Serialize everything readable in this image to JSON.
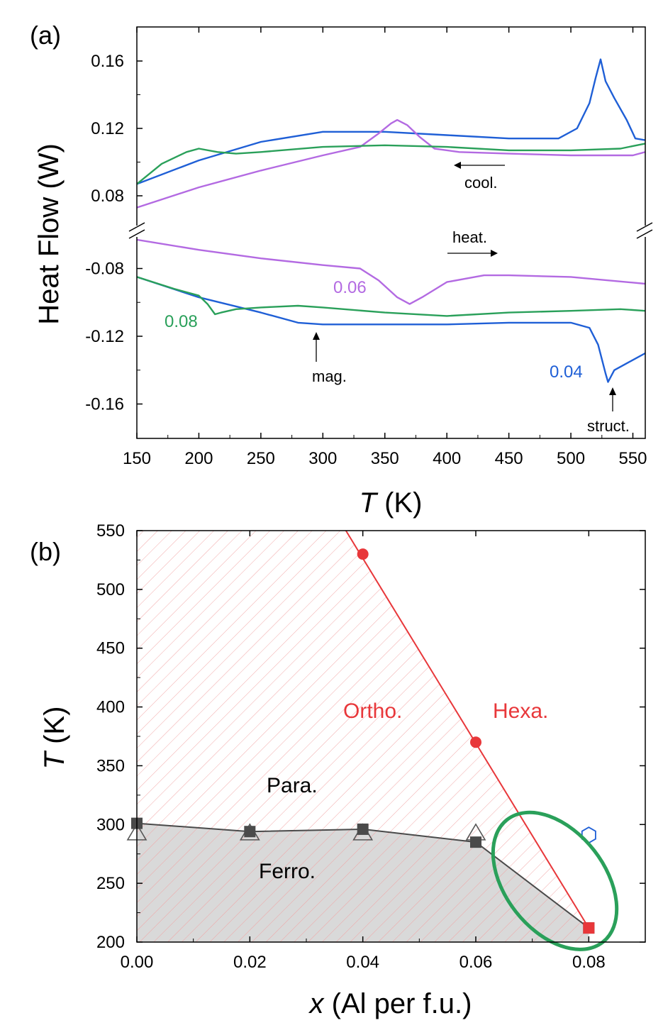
{
  "panel_a": {
    "label": "(a)",
    "ylabel": "Heat Flow (W)",
    "xlabel_italic": "T",
    "xlabel_rest": " (K)",
    "xticks": [
      150,
      200,
      250,
      300,
      350,
      400,
      450,
      500,
      550
    ],
    "yticks_top": [
      "0.16",
      "0.12",
      "0.08"
    ],
    "yticks_bottom": [
      "-0.08",
      "-0.12",
      "-0.16"
    ],
    "annotations": {
      "cool": "cool.",
      "heat": "heat.",
      "mag": "mag.",
      "struct": "struct."
    },
    "series_labels": {
      "x006": "0.06",
      "x008": "0.08",
      "x004": "0.04"
    }
  },
  "panel_b": {
    "label": "(b)",
    "ylabel_italic": "T",
    "ylabel_rest": " (K)",
    "xlabel_italic": "x",
    "xlabel_rest": " (Al per f.u.)",
    "xticks": [
      "0.00",
      "0.02",
      "0.04",
      "0.06",
      "0.08"
    ],
    "yticks": [
      "550",
      "500",
      "450",
      "400",
      "350",
      "300",
      "250",
      "200"
    ],
    "regions": {
      "ortho": "Ortho.",
      "hexa": "Hexa.",
      "para": "Para.",
      "ferro": "Ferro."
    }
  },
  "colors": {
    "blue": "#1f5fd6",
    "green": "#2aa05a",
    "purple": "#b36ae2",
    "red": "#e8373a",
    "dark": "#4a4a4a",
    "hatch": "#f2a8a8",
    "ferro_fill": "#cfcfcf",
    "ellipse": "#2aa05a"
  },
  "chart_data": [
    {
      "type": "line",
      "panel": "a",
      "xlim": [
        150,
        560
      ],
      "ylim_top": [
        0.055,
        0.18
      ],
      "ylim_bottom": [
        -0.185,
        -0.057
      ],
      "y_axis_break": true,
      "series": [
        {
          "name": "0.04",
          "branch": "cooling",
          "color": "blue",
          "x": [
            150,
            200,
            250,
            300,
            350,
            400,
            450,
            490,
            505,
            515,
            520,
            524,
            528,
            535,
            545,
            552,
            560
          ],
          "y": [
            0.087,
            0.101,
            0.112,
            0.118,
            0.118,
            0.116,
            0.114,
            0.114,
            0.12,
            0.135,
            0.15,
            0.161,
            0.148,
            0.138,
            0.125,
            0.114,
            0.113
          ]
        },
        {
          "name": "0.04",
          "branch": "heating",
          "color": "blue",
          "x": [
            150,
            200,
            250,
            280,
            300,
            350,
            400,
            450,
            500,
            515,
            522,
            528,
            530,
            535,
            545,
            560
          ],
          "y": [
            -0.085,
            -0.097,
            -0.106,
            -0.112,
            -0.113,
            -0.113,
            -0.113,
            -0.112,
            -0.112,
            -0.115,
            -0.125,
            -0.142,
            -0.147,
            -0.14,
            -0.136,
            -0.13
          ]
        },
        {
          "name": "0.06",
          "branch": "cooling",
          "color": "purple",
          "x": [
            150,
            200,
            250,
            300,
            330,
            345,
            355,
            360,
            368,
            378,
            390,
            410,
            450,
            500,
            550,
            560
          ],
          "y": [
            0.073,
            0.085,
            0.095,
            0.104,
            0.109,
            0.117,
            0.123,
            0.125,
            0.122,
            0.115,
            0.108,
            0.106,
            0.105,
            0.104,
            0.104,
            0.106
          ]
        },
        {
          "name": "0.06",
          "branch": "heating",
          "color": "purple",
          "x": [
            150,
            200,
            250,
            300,
            330,
            345,
            360,
            370,
            380,
            400,
            430,
            450,
            500,
            560
          ],
          "y": [
            -0.063,
            -0.069,
            -0.074,
            -0.078,
            -0.08,
            -0.087,
            -0.097,
            -0.101,
            -0.097,
            -0.088,
            -0.084,
            -0.084,
            -0.085,
            -0.089
          ]
        },
        {
          "name": "0.08",
          "branch": "cooling",
          "color": "green",
          "x": [
            150,
            170,
            190,
            200,
            215,
            230,
            250,
            300,
            350,
            400,
            450,
            500,
            540,
            560
          ],
          "y": [
            0.087,
            0.099,
            0.106,
            0.108,
            0.106,
            0.105,
            0.106,
            0.109,
            0.11,
            0.109,
            0.107,
            0.107,
            0.108,
            0.111
          ]
        },
        {
          "name": "0.08",
          "branch": "heating",
          "color": "green",
          "x": [
            150,
            180,
            200,
            207,
            213,
            218,
            230,
            250,
            280,
            300,
            350,
            400,
            450,
            500,
            540,
            560
          ],
          "y": [
            -0.085,
            -0.092,
            -0.096,
            -0.101,
            -0.107,
            -0.106,
            -0.104,
            -0.103,
            -0.102,
            -0.103,
            -0.106,
            -0.108,
            -0.106,
            -0.105,
            -0.104,
            -0.105
          ]
        }
      ]
    },
    {
      "type": "scatter",
      "panel": "b",
      "xlim": [
        0.0,
        0.09
      ],
      "ylim": [
        200,
        550
      ],
      "series": [
        {
          "name": "structural",
          "color": "red",
          "marker": "circle",
          "x": [
            0.04,
            0.06,
            0.08
          ],
          "y": [
            530,
            370,
            212
          ]
        },
        {
          "name": "magnetic (squares)",
          "color": "dark",
          "marker": "square",
          "x": [
            0.0,
            0.02,
            0.04,
            0.06,
            0.08
          ],
          "y": [
            301,
            294,
            296,
            285,
            212
          ]
        },
        {
          "name": "magnetic (triangles)",
          "color": "dark",
          "marker": "open-triangle",
          "x": [
            0.0,
            0.02,
            0.04,
            0.06
          ],
          "y": [
            293,
            293,
            293,
            293
          ]
        },
        {
          "name": "hexagonal",
          "color": "blue",
          "marker": "open-hexagon",
          "x": [
            0.08
          ],
          "y": [
            291
          ]
        }
      ],
      "lines": [
        {
          "name": "structural boundary",
          "color": "red",
          "x": [
            0.037,
            0.08
          ],
          "y": [
            550,
            212
          ]
        },
        {
          "name": "magnetic boundary",
          "color": "dark",
          "x": [
            0.0,
            0.02,
            0.04,
            0.06,
            0.08
          ],
          "y": [
            301,
            294,
            296,
            285,
            212
          ]
        }
      ],
      "ellipse": {
        "cx": 0.074,
        "cy": 252,
        "rx_x": 0.0088,
        "ry_T": 48
      }
    }
  ]
}
